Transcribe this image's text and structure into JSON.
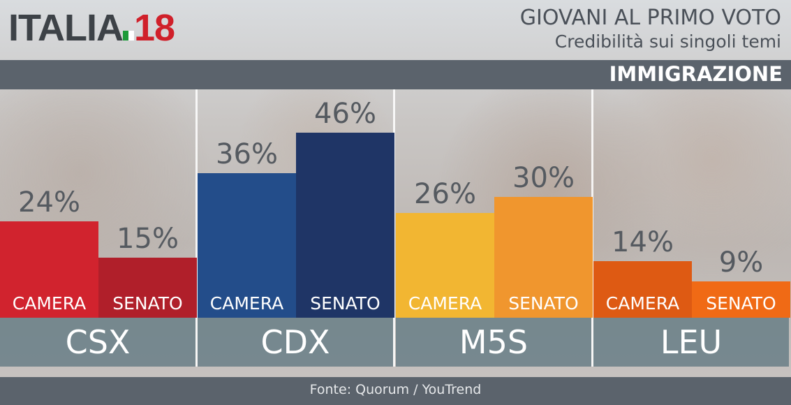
{
  "header": {
    "logo_text": "ITALIA 18",
    "title": "GIOVANI AL PRIMO VOTO",
    "subtitle": "Credibilità sui singoli temi",
    "topic": "IMMIGRAZIONE"
  },
  "chart_data": {
    "type": "bar",
    "title": "GIOVANI AL PRIMO VOTO",
    "subtitle": "Credibilità sui singoli temi",
    "categories": [
      "CSX",
      "CDX",
      "M5S",
      "LEU"
    ],
    "series": [
      {
        "name": "CAMERA",
        "values": [
          24,
          36,
          26,
          14
        ],
        "labels": [
          "24%",
          "36%",
          "26%",
          "14%"
        ],
        "colors": [
          "#d1232e",
          "#234d8a",
          "#f2b632",
          "#de5a13"
        ]
      },
      {
        "name": "SENATO",
        "values": [
          15,
          46,
          30,
          9
        ],
        "labels": [
          "15%",
          "46%",
          "30%",
          "9%"
        ],
        "colors": [
          "#b01f2a",
          "#1f3566",
          "#f0962e",
          "#f06a15"
        ]
      }
    ],
    "ylim": [
      0,
      55
    ],
    "grid": false
  },
  "footer": {
    "source": "Fonte: Quorum / YouTrend"
  }
}
